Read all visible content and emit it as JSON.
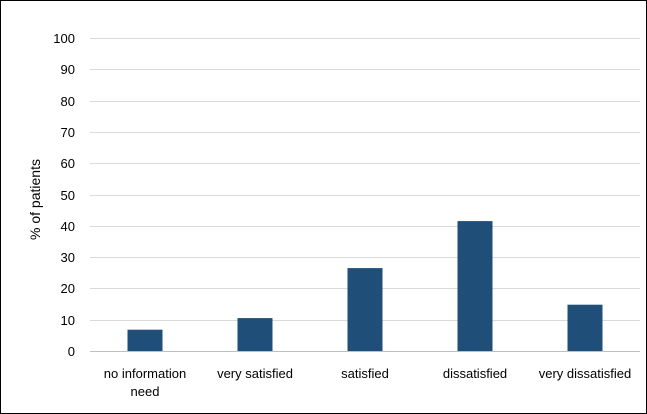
{
  "chart_data": {
    "type": "bar",
    "title": "",
    "xlabel": "",
    "ylabel": "% of patients",
    "ylim": [
      0,
      100
    ],
    "yticks": [
      0,
      10,
      20,
      30,
      40,
      50,
      60,
      70,
      80,
      90,
      100
    ],
    "grid": true,
    "categories": [
      [
        "no information",
        "need"
      ],
      [
        "very satisfied"
      ],
      [
        "satisfied"
      ],
      [
        "dissatisfied"
      ],
      [
        "very dissatisfied"
      ]
    ],
    "values": [
      6.8,
      10.5,
      26.5,
      41.5,
      14.8
    ],
    "bar_color": "#1f4e79",
    "grid_color": "#d9d9d9",
    "axis_color": "#bfbfbf"
  }
}
